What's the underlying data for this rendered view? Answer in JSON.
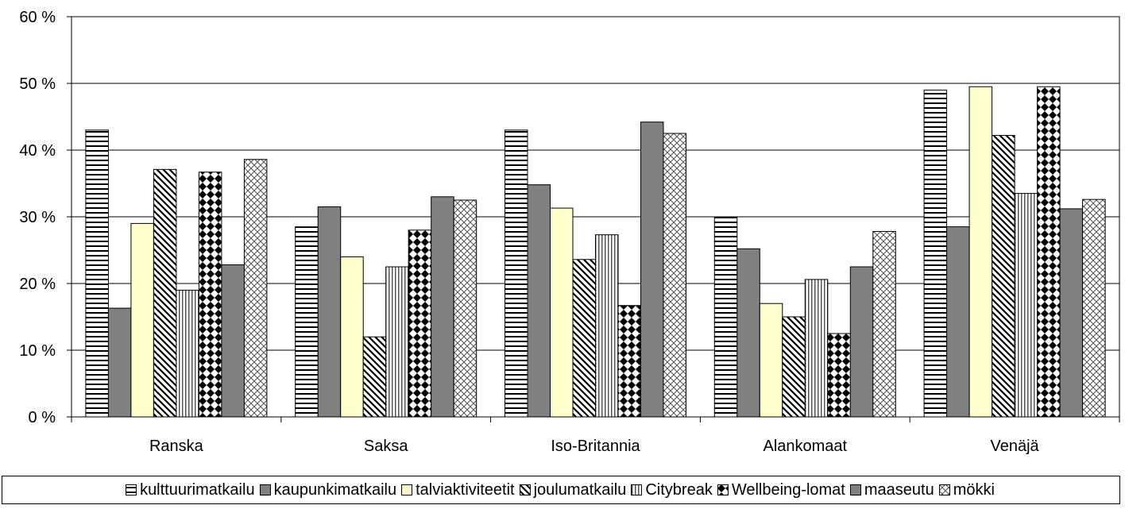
{
  "chart_data": {
    "type": "bar",
    "categories": [
      "Ranska",
      "Saksa",
      "Iso-Britannia",
      "Alankomaat",
      "Venäjä"
    ],
    "series": [
      {
        "name": "kulttuurimatkailu",
        "values": [
          43,
          28.5,
          43,
          30,
          49
        ]
      },
      {
        "name": "kaupunkimatkailu",
        "values": [
          16.3,
          31.5,
          34.8,
          25.2,
          28.5
        ]
      },
      {
        "name": "talviaktiviteetit",
        "values": [
          29,
          24,
          31.3,
          17,
          49.5
        ]
      },
      {
        "name": "joulumatkailu",
        "values": [
          37.1,
          12,
          23.6,
          15,
          42.2
        ]
      },
      {
        "name": "Citybreak",
        "values": [
          19,
          22.5,
          27.3,
          20.6,
          33.5
        ]
      },
      {
        "name": "Wellbeing-lomat",
        "values": [
          36.7,
          28,
          16.7,
          12.5,
          49.5
        ]
      },
      {
        "name": "maaseutu",
        "values": [
          22.8,
          33,
          44.2,
          22.5,
          31.2
        ]
      },
      {
        "name": "mökki",
        "values": [
          38.6,
          32.5,
          42.5,
          27.8,
          32.6
        ]
      }
    ],
    "yticks": [
      "0 %",
      "10 %",
      "20 %",
      "30 %",
      "40 %",
      "50 %",
      "60 %"
    ],
    "ylim": [
      0,
      60
    ],
    "legend_position": "bottom",
    "grid": "horizontal"
  }
}
